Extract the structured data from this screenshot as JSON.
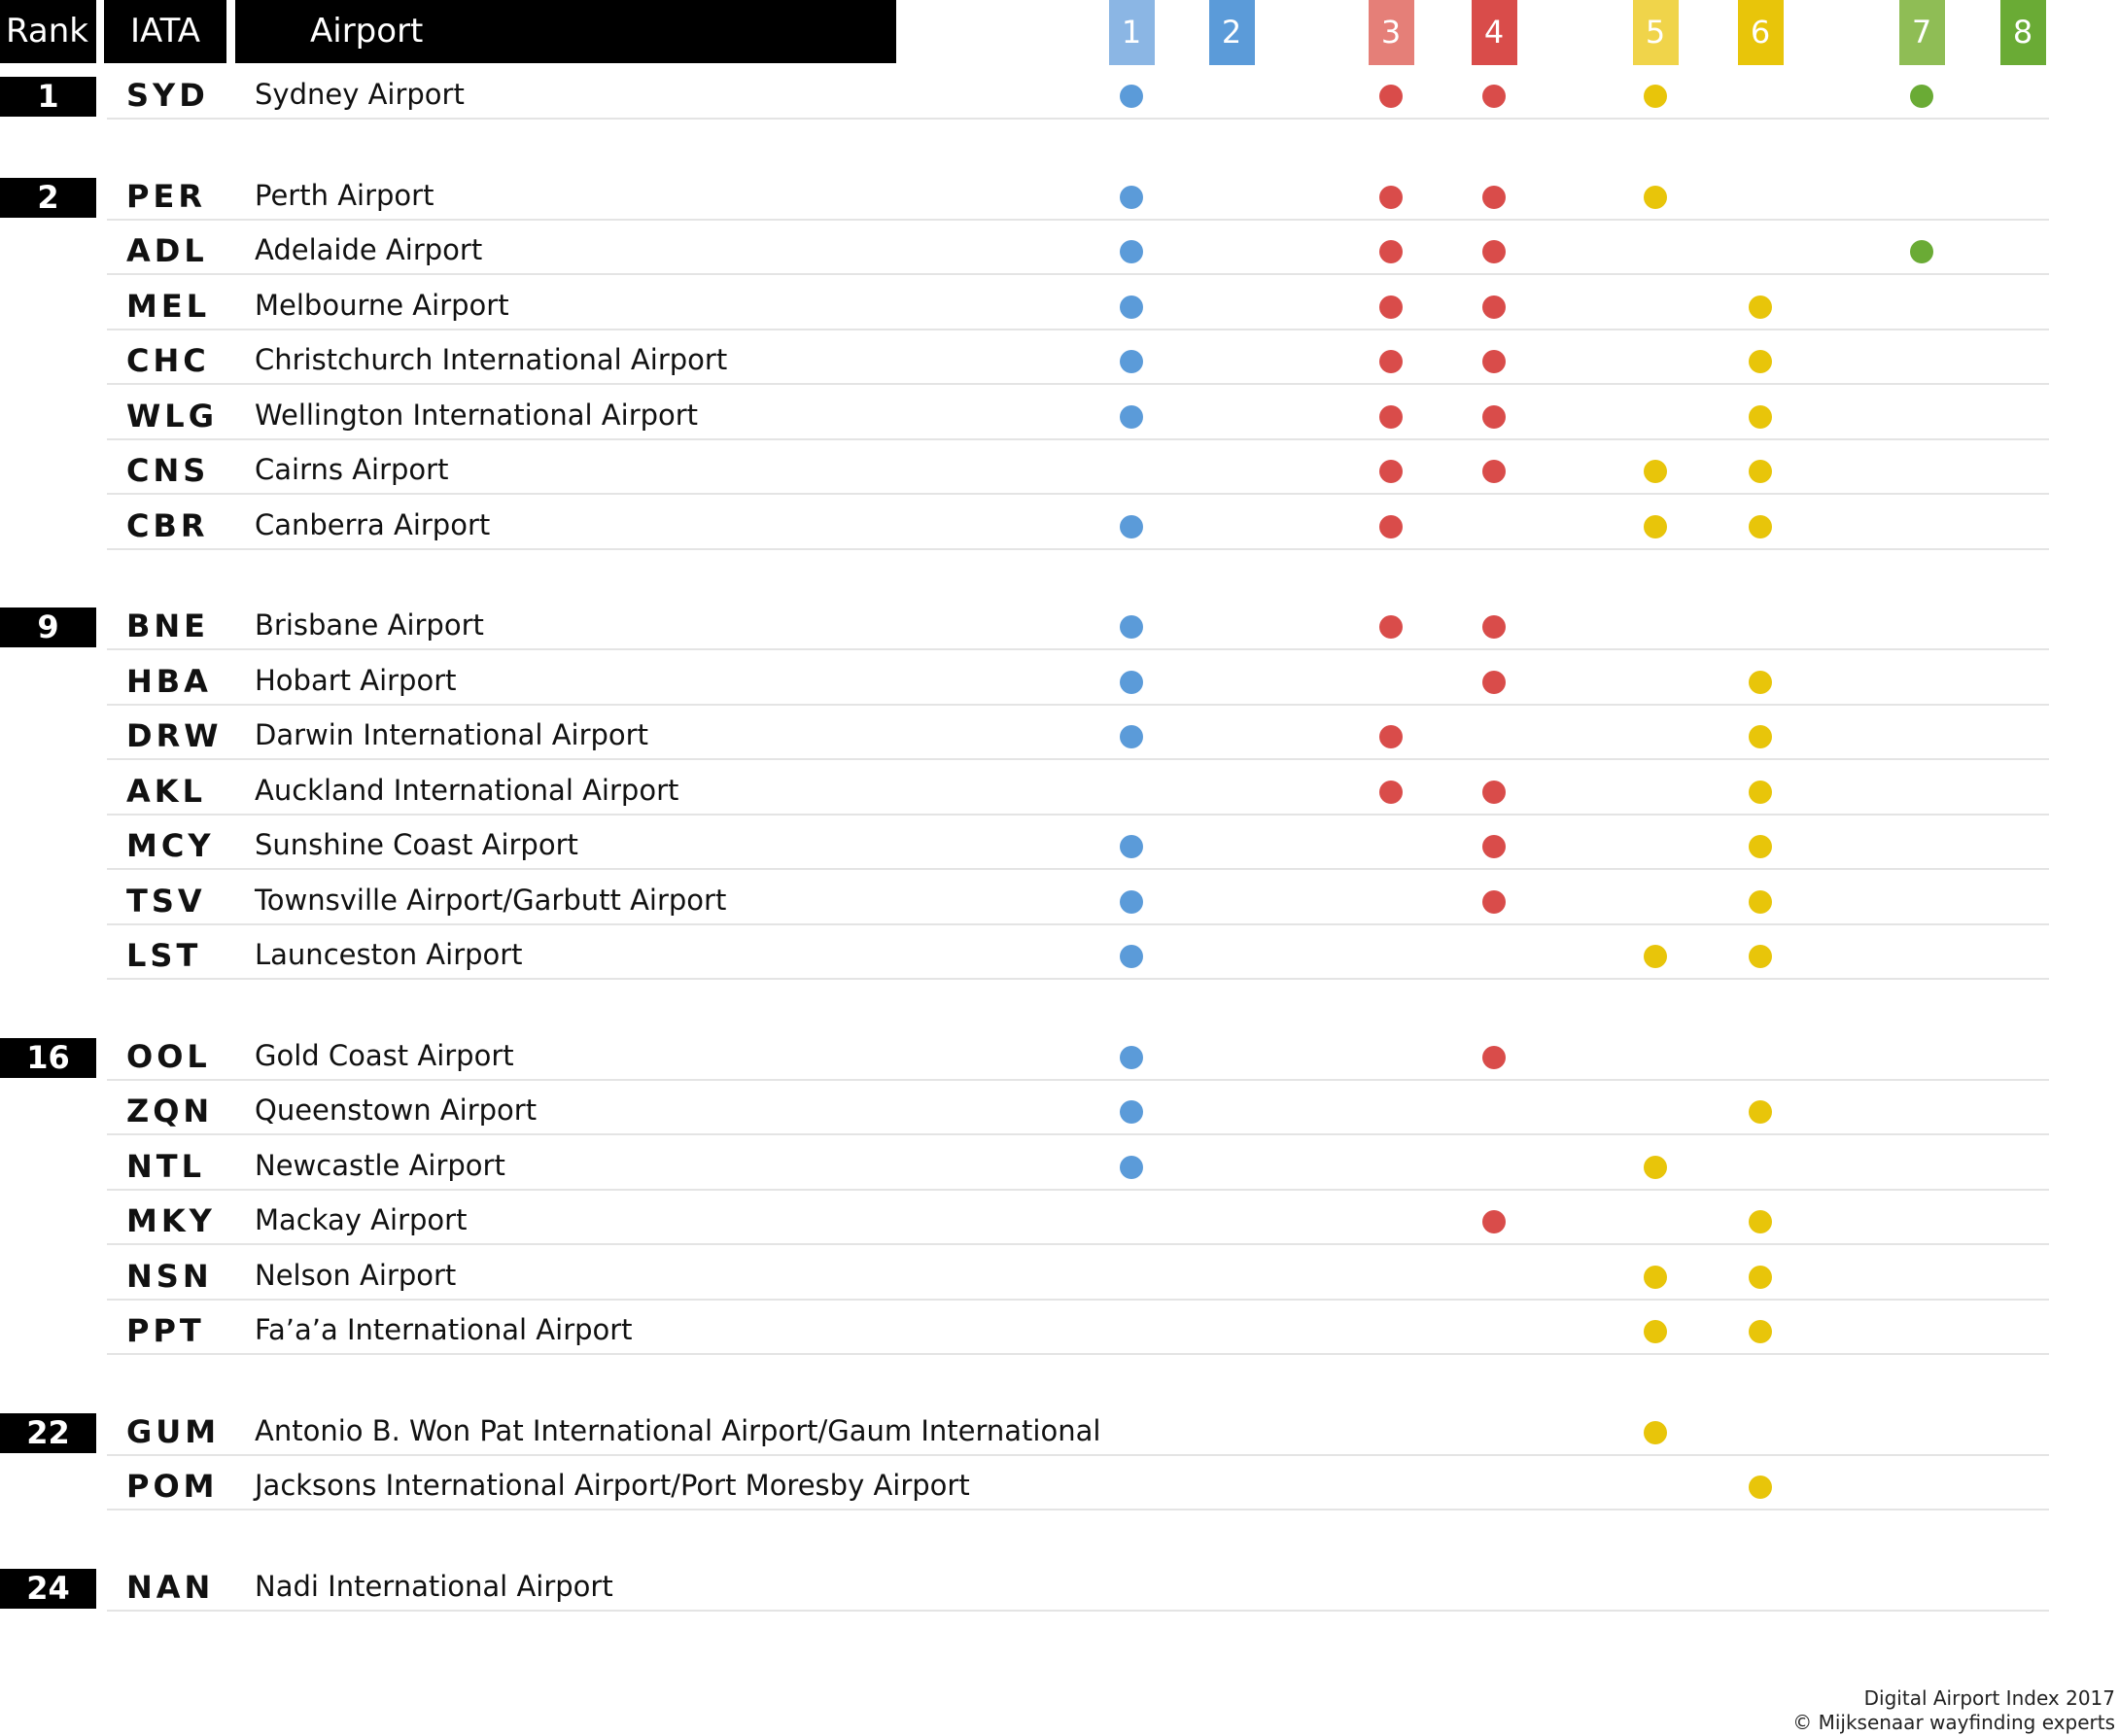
{
  "chart_data": {
    "type": "table",
    "headers": {
      "rank": "Rank",
      "iata": "IATA",
      "airport": "Airport"
    },
    "columns": [
      {
        "label": "1",
        "header_color": "#8bb6e4",
        "dot_color": "#5b9bd9"
      },
      {
        "label": "2",
        "header_color": "#5b9bd9",
        "dot_color": "#5b9bd9"
      },
      {
        "label": "3",
        "header_color": "#e57f78",
        "dot_color": "#d94c4a"
      },
      {
        "label": "4",
        "header_color": "#d94c4a",
        "dot_color": "#d94c4a"
      },
      {
        "label": "5",
        "header_color": "#f0d44a",
        "dot_color": "#e8c50a"
      },
      {
        "label": "6",
        "header_color": "#e8c50a",
        "dot_color": "#e8c50a"
      },
      {
        "label": "7",
        "header_color": "#8fbd55",
        "dot_color": "#6aab35"
      },
      {
        "label": "8",
        "header_color": "#6aab35",
        "dot_color": "#6aab35"
      }
    ],
    "groups": [
      {
        "rank": "1",
        "rows": [
          {
            "iata": "SYD",
            "airport": "Sydney Airport",
            "marks": [
              1,
              3,
              4,
              5,
              7
            ]
          }
        ]
      },
      {
        "rank": "2",
        "rows": [
          {
            "iata": "PER",
            "airport": "Perth Airport",
            "marks": [
              1,
              3,
              4,
              5
            ]
          },
          {
            "iata": "ADL",
            "airport": "Adelaide Airport",
            "marks": [
              1,
              3,
              4,
              7
            ]
          },
          {
            "iata": "MEL",
            "airport": "Melbourne Airport",
            "marks": [
              1,
              3,
              4,
              6
            ]
          },
          {
            "iata": "CHC",
            "airport": "Christchurch International Airport",
            "marks": [
              1,
              3,
              4,
              6
            ]
          },
          {
            "iata": "WLG",
            "airport": "Wellington International Airport",
            "marks": [
              1,
              3,
              4,
              6
            ]
          },
          {
            "iata": "CNS",
            "airport": "Cairns Airport",
            "marks": [
              3,
              4,
              5,
              6
            ]
          },
          {
            "iata": "CBR",
            "airport": "Canberra Airport",
            "marks": [
              1,
              3,
              5,
              6
            ]
          }
        ]
      },
      {
        "rank": "9",
        "rows": [
          {
            "iata": "BNE",
            "airport": "Brisbane Airport",
            "marks": [
              1,
              3,
              4
            ]
          },
          {
            "iata": "HBA",
            "airport": "Hobart Airport",
            "marks": [
              1,
              4,
              6
            ]
          },
          {
            "iata": "DRW",
            "airport": "Darwin International Airport",
            "marks": [
              1,
              3,
              6
            ]
          },
          {
            "iata": "AKL",
            "airport": "Auckland International Airport",
            "marks": [
              3,
              4,
              6
            ]
          },
          {
            "iata": "MCY",
            "airport": "Sunshine Coast Airport",
            "marks": [
              1,
              4,
              6
            ]
          },
          {
            "iata": "TSV",
            "airport": "Townsville Airport/Garbutt Airport",
            "marks": [
              1,
              4,
              6
            ]
          },
          {
            "iata": "LST",
            "airport": "Launceston Airport",
            "marks": [
              1,
              5,
              6
            ]
          }
        ]
      },
      {
        "rank": "16",
        "rows": [
          {
            "iata": "OOL",
            "airport": "Gold Coast Airport",
            "marks": [
              1,
              4
            ]
          },
          {
            "iata": "ZQN",
            "airport": "Queenstown Airport",
            "marks": [
              1,
              6
            ]
          },
          {
            "iata": "NTL",
            "airport": "Newcastle Airport",
            "marks": [
              1,
              5
            ]
          },
          {
            "iata": "MKY",
            "airport": "Mackay Airport",
            "marks": [
              4,
              6
            ]
          },
          {
            "iata": "NSN",
            "airport": "Nelson Airport",
            "marks": [
              5,
              6
            ]
          },
          {
            "iata": "PPT",
            "airport": "Fa’a’a International Airport",
            "marks": [
              5,
              6
            ]
          }
        ]
      },
      {
        "rank": "22",
        "rows": [
          {
            "iata": "GUM",
            "airport": "Antonio B. Won Pat International Airport/Gaum International",
            "marks": [
              5
            ]
          },
          {
            "iata": "POM",
            "airport": "Jacksons International Airport/Port Moresby Airport",
            "marks": [
              6
            ]
          }
        ]
      },
      {
        "rank": "24",
        "rows": [
          {
            "iata": "NAN",
            "airport": "Nadi International Airport",
            "marks": []
          }
        ]
      }
    ]
  },
  "footer": {
    "line1": "Digital Airport Index 2017",
    "line2": "© Mijksenaar wayfinding experts"
  }
}
